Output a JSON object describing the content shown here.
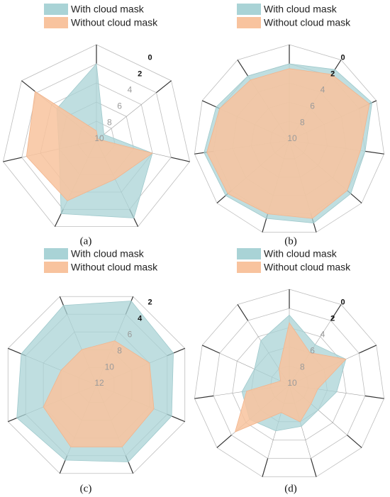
{
  "legend": {
    "with_label": "With cloud mask",
    "without_label": "Without cloud mask",
    "with_color": "#a9d3d6",
    "without_color": "#f8c39e"
  },
  "chart_data": [
    {
      "type": "radar",
      "panel_label": "(a)",
      "axes_count": 7,
      "range": [
        10,
        0
      ],
      "ticks": [
        {
          "value": 10,
          "label": "10"
        },
        {
          "value": 8,
          "label": "8"
        },
        {
          "value": 6,
          "label": "6"
        },
        {
          "value": 4,
          "label": "4"
        },
        {
          "value": 2,
          "label": "2"
        },
        {
          "value": 0,
          "label": "0"
        }
      ],
      "series": [
        {
          "name": "With cloud mask",
          "values": [
            2,
            9,
            4,
            1,
            1.5,
            6,
            4.7
          ]
        },
        {
          "name": "Without cloud mask",
          "values": [
            9,
            9.8,
            4,
            5.5,
            3,
            2.5,
            1.8
          ]
        }
      ]
    },
    {
      "type": "radar",
      "panel_label": "(b)",
      "axes_count": 11,
      "range": [
        10,
        0
      ],
      "ticks": [
        {
          "value": 10,
          "label": "10"
        },
        {
          "value": 8,
          "label": "8"
        },
        {
          "value": 6,
          "label": "6"
        },
        {
          "value": 4,
          "label": "4"
        },
        {
          "value": 2,
          "label": "2"
        },
        {
          "value": 0,
          "label": "0"
        }
      ],
      "series": [
        {
          "name": "With cloud mask",
          "values": [
            2,
            1.2,
            0.5,
            2,
            1.5,
            1,
            1.5,
            1.2,
            1,
            1.6,
            2
          ]
        },
        {
          "name": "Without cloud mask",
          "values": [
            2.5,
            1.8,
            0.8,
            2.5,
            2,
            1.5,
            2,
            1.5,
            1.3,
            2,
            2.5
          ]
        }
      ]
    },
    {
      "type": "radar",
      "panel_label": "(c)",
      "axes_count": 8,
      "range": [
        12,
        2
      ],
      "ticks": [
        {
          "value": 12,
          "label": "12"
        },
        {
          "value": 10,
          "label": "10"
        },
        {
          "value": 8,
          "label": "8"
        },
        {
          "value": 6,
          "label": "6"
        },
        {
          "value": 4,
          "label": "4"
        },
        {
          "value": 2,
          "label": "2"
        }
      ],
      "series": [
        {
          "name": "With cloud mask",
          "values": [
            3,
            2.5,
            3.3,
            3.5,
            3.3,
            3.5,
            3,
            3.5
          ]
        },
        {
          "name": "Without cloud mask",
          "values": [
            8,
            7,
            6,
            5.5,
            5,
            5,
            6,
            8
          ]
        }
      ]
    },
    {
      "type": "radar",
      "panel_label": "(d)",
      "axes_count": 11,
      "range": [
        10,
        0
      ],
      "ticks": [
        {
          "value": 10,
          "label": "10"
        },
        {
          "value": 8,
          "label": "8"
        },
        {
          "value": 6,
          "label": "6"
        },
        {
          "value": 4,
          "label": "4"
        },
        {
          "value": 2,
          "label": "2"
        },
        {
          "value": 0,
          "label": "0"
        }
      ],
      "series": [
        {
          "name": "With cloud mask",
          "values": [
            2.7,
            5,
            3.5,
            5,
            6,
            5.5,
            5,
            4.5,
            5,
            6,
            4.5
          ]
        },
        {
          "name": "Without cloud mask",
          "values": [
            3.5,
            6,
            3.5,
            7,
            7,
            6,
            7,
            2.5,
            5.5,
            9,
            8
          ]
        }
      ]
    }
  ]
}
